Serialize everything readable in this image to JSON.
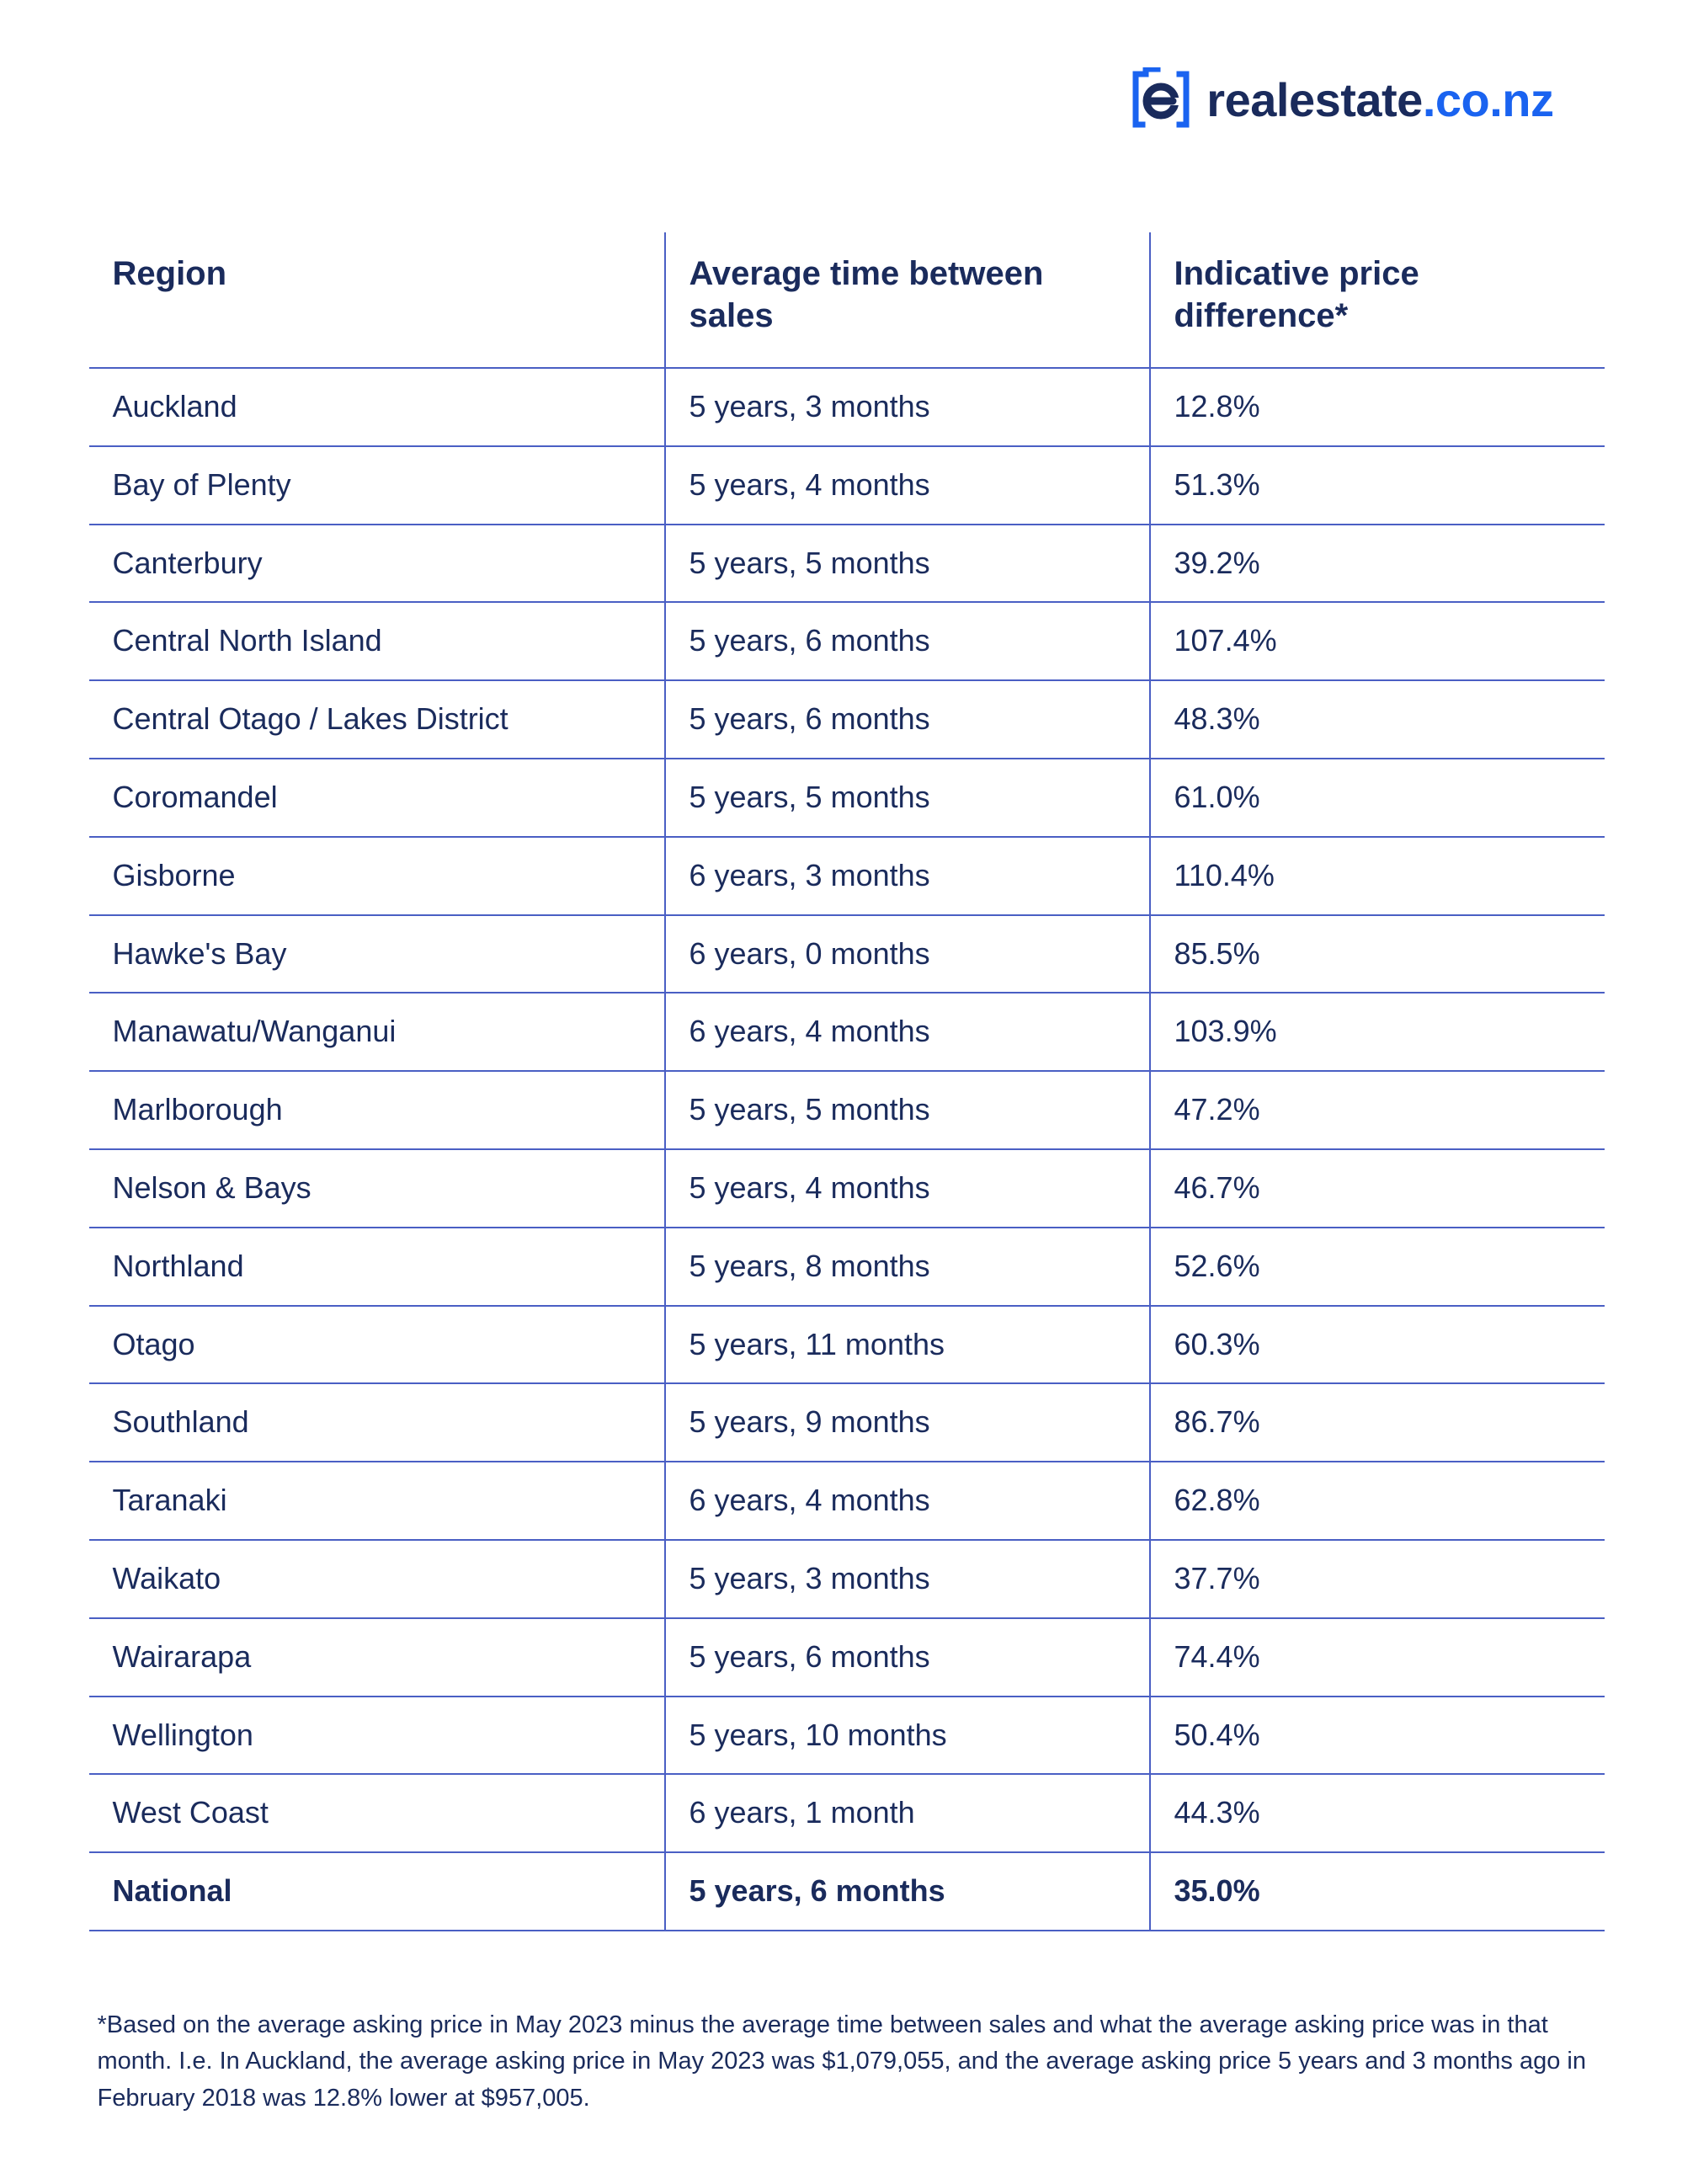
{
  "brand": {
    "name_main": "realestate",
    "name_suffix": ".co.nz",
    "icon_stroke": "#1a63f0",
    "icon_fill_inner": "#1a2b5c"
  },
  "table": {
    "columns": [
      "Region",
      "Average time between sales",
      "Indicative price difference*"
    ],
    "rows": [
      {
        "region": "Auckland",
        "time": "5 years, 3 months",
        "diff": "12.8%"
      },
      {
        "region": "Bay of Plenty",
        "time": "5 years, 4 months",
        "diff": "51.3%"
      },
      {
        "region": "Canterbury",
        "time": "5 years, 5 months",
        "diff": "39.2%"
      },
      {
        "region": "Central North Island",
        "time": "5 years, 6 months",
        "diff": "107.4%"
      },
      {
        "region": "Central Otago / Lakes District",
        "time": "5 years, 6 months",
        "diff": "48.3%"
      },
      {
        "region": "Coromandel",
        "time": "5 years, 5 months",
        "diff": "61.0%"
      },
      {
        "region": "Gisborne",
        "time": "6 years, 3 months",
        "diff": "110.4%"
      },
      {
        "region": "Hawke's Bay",
        "time": "6 years, 0 months",
        "diff": "85.5%"
      },
      {
        "region": "Manawatu/Wanganui",
        "time": "6 years, 4 months",
        "diff": "103.9%"
      },
      {
        "region": "Marlborough",
        "time": "5 years, 5 months",
        "diff": "47.2%"
      },
      {
        "region": "Nelson & Bays",
        "time": "5 years, 4 months",
        "diff": "46.7%"
      },
      {
        "region": "Northland",
        "time": "5 years, 8 months",
        "diff": "52.6%"
      },
      {
        "region": "Otago",
        "time": "5 years, 11 months",
        "diff": "60.3%"
      },
      {
        "region": "Southland",
        "time": "5 years, 9 months",
        "diff": "86.7%"
      },
      {
        "region": "Taranaki",
        "time": "6 years, 4 months",
        "diff": "62.8%"
      },
      {
        "region": "Waikato",
        "time": "5 years, 3 months",
        "diff": "37.7%"
      },
      {
        "region": "Wairarapa",
        "time": "5 years, 6 months",
        "diff": "74.4%"
      },
      {
        "region": "Wellington",
        "time": "5 years, 10 months",
        "diff": "50.4%"
      },
      {
        "region": "West Coast",
        "time": "6 years, 1 month",
        "diff": "44.3%"
      }
    ],
    "summary": {
      "region": "National",
      "time": "5 years, 6 months",
      "diff": "35.0%"
    },
    "header_color": "#1a2b5c",
    "cell_color": "#1a2b5c",
    "border_color": "#4a5fc4",
    "header_fontsize": 40,
    "cell_fontsize": 36,
    "col_widths_pct": [
      38,
      32,
      30
    ]
  },
  "footnote": "*Based on the average asking price in May 2023 minus the average time between sales and what the average asking price was in that month. I.e. In Auckland, the average asking price in May 2023 was $1,079,055, and the average asking price 5 years and 3 months ago in February 2018 was 12.8% lower at $957,005."
}
